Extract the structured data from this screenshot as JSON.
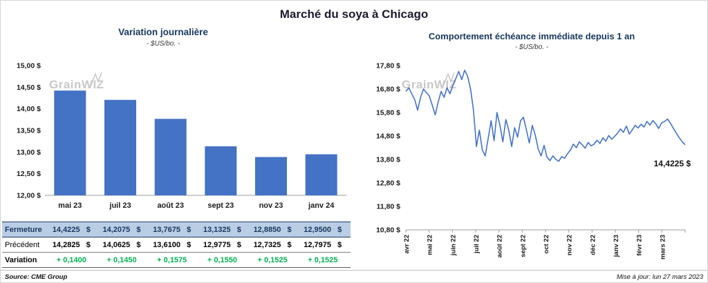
{
  "title": "Marché du soya à Chicago",
  "watermark": "GrainWIZ",
  "footer": {
    "source": "Source: CME Group",
    "updated": "Mise à jour: lun 27 mars 2023"
  },
  "chart_data": [
    {
      "type": "bar",
      "title": "Variation journalière",
      "subtitle": "- $US/bo. -",
      "categories": [
        "mai 23",
        "juil 23",
        "août 23",
        "sept 23",
        "nov 23",
        "janv 24"
      ],
      "values": [
        14.4225,
        14.2075,
        13.7675,
        13.1325,
        12.885,
        12.95
      ],
      "ylim": [
        12.0,
        15.0
      ],
      "ytick_step": 0.5,
      "ytick_labels": [
        "15,00 $",
        "14,50 $",
        "14,00 $",
        "13,50 $",
        "13,00 $",
        "12,50 $",
        "12,00 $"
      ],
      "bar_color": "#4472C4",
      "grid": false,
      "table": {
        "rows": [
          {
            "label": "Fermeture",
            "values": [
              "14,4225   $",
              "14,2075   $",
              "13,7675   $",
              "13,1325   $",
              "12,8850   $",
              "12,9500   $"
            ]
          },
          {
            "label": "Précédent",
            "values": [
              "14,2825   $",
              "14,0625   $",
              "13,6100   $",
              "12,9775   $",
              "12,7325   $",
              "12,7975   $"
            ]
          },
          {
            "label": "Variation",
            "values": [
              "+ 0,1400",
              "+ 0,1450",
              "+ 0,1575",
              "+ 0,1550",
              "+ 0,1525",
              "+ 0,1525"
            ]
          }
        ]
      }
    },
    {
      "type": "line",
      "title": "Comportement échéance immédiate depuis 1 an",
      "subtitle": "- $US/bo. -",
      "x_labels": [
        "avr 22",
        "mai 22",
        "juin 22",
        "juil 22",
        "août 22",
        "sept 22",
        "oct 22",
        "nov 22",
        "déc 22",
        "janv 23",
        "févr 23",
        "mars 23"
      ],
      "values": [
        16.7,
        16.85,
        16.6,
        16.35,
        15.9,
        16.45,
        16.8,
        16.65,
        16.5,
        16.1,
        15.7,
        16.25,
        16.7,
        16.45,
        16.85,
        16.6,
        16.95,
        17.25,
        17.55,
        17.2,
        17.6,
        17.35,
        16.8,
        15.9,
        14.35,
        15.05,
        14.2,
        13.95,
        14.7,
        15.45,
        14.6,
        15.8,
        15.25,
        14.55,
        15.5,
        15.05,
        14.35,
        15.15,
        14.75,
        15.45,
        15.6,
        15.05,
        14.5,
        15.25,
        14.85,
        14.25,
        13.95,
        14.4,
        13.9,
        13.75,
        13.95,
        13.8,
        13.72,
        13.92,
        13.85,
        14.05,
        14.2,
        14.45,
        14.3,
        14.55,
        14.42,
        14.28,
        14.52,
        14.38,
        14.45,
        14.62,
        14.48,
        14.72,
        14.58,
        14.82,
        14.66,
        14.78,
        14.92,
        15.1,
        14.96,
        15.22,
        14.88,
        15.06,
        15.26,
        15.14,
        15.3,
        15.18,
        15.42,
        15.26,
        15.46,
        15.32,
        15.12,
        15.36,
        15.42,
        15.52,
        15.34,
        15.12,
        14.92,
        14.72,
        14.56,
        14.4225
      ],
      "ylim": [
        10.8,
        17.8
      ],
      "ytick_step": 1.0,
      "ytick_labels": [
        "17,80 $",
        "16,80 $",
        "15,80 $",
        "14,80 $",
        "13,80 $",
        "12,80 $",
        "11,80 $",
        "10,80 $"
      ],
      "line_color": "#4472C4",
      "grid": false,
      "end_label": "14,4225 $"
    }
  ]
}
